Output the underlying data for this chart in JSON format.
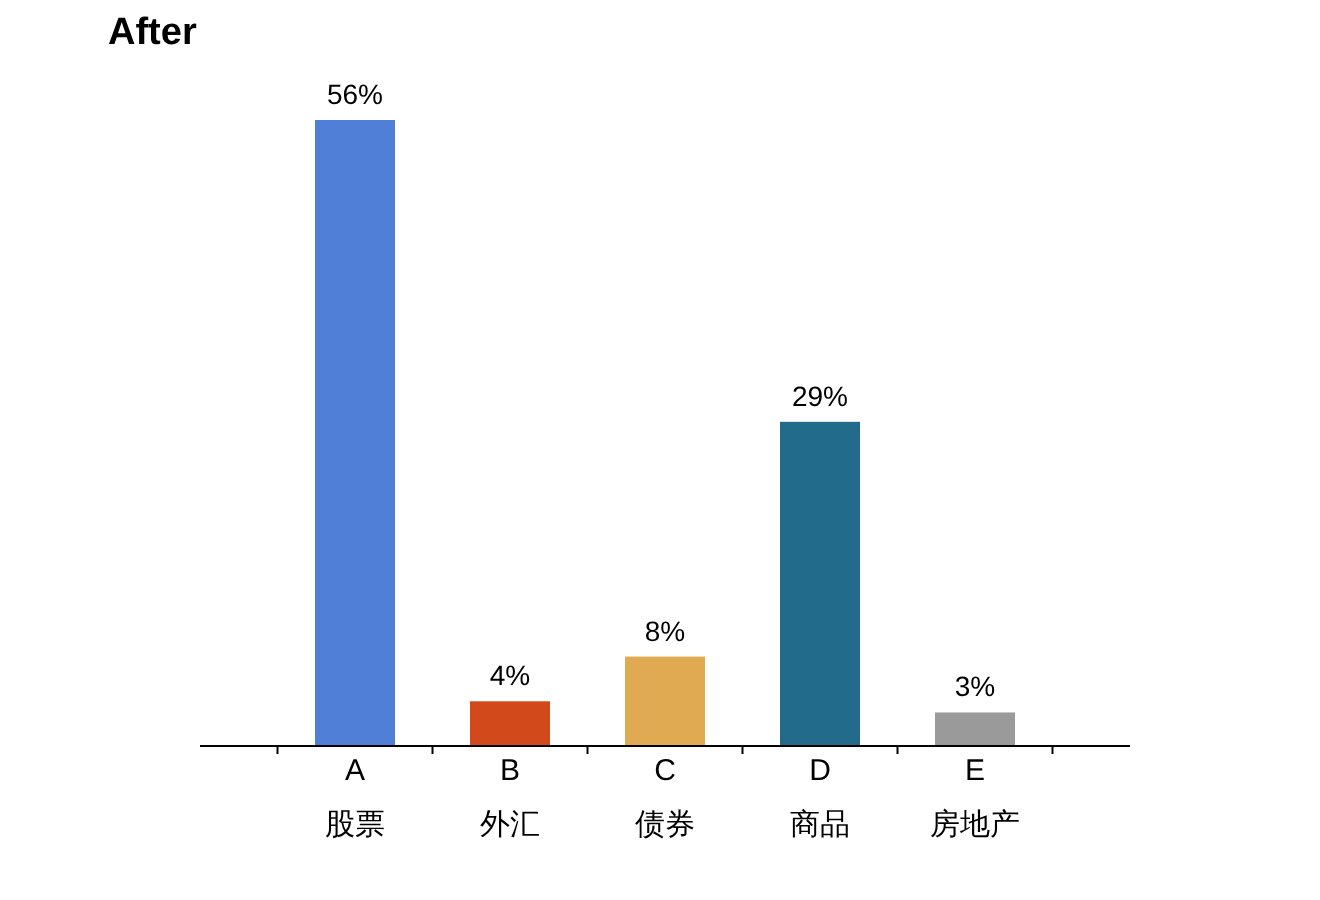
{
  "chart_data": {
    "type": "bar",
    "title": "After",
    "categories": [
      "A\n股票",
      "B\n外汇",
      "C\n债券",
      "D\n商品",
      "E\n房地产"
    ],
    "values": [
      56,
      4,
      8,
      29,
      3
    ],
    "colors": [
      "#4f7fd6",
      "#d24a1c",
      "#e0aa52",
      "#236b8a",
      "#9a9a9a"
    ],
    "value_labels": [
      "56%",
      "4%",
      "8%",
      "29%",
      "3%"
    ]
  }
}
